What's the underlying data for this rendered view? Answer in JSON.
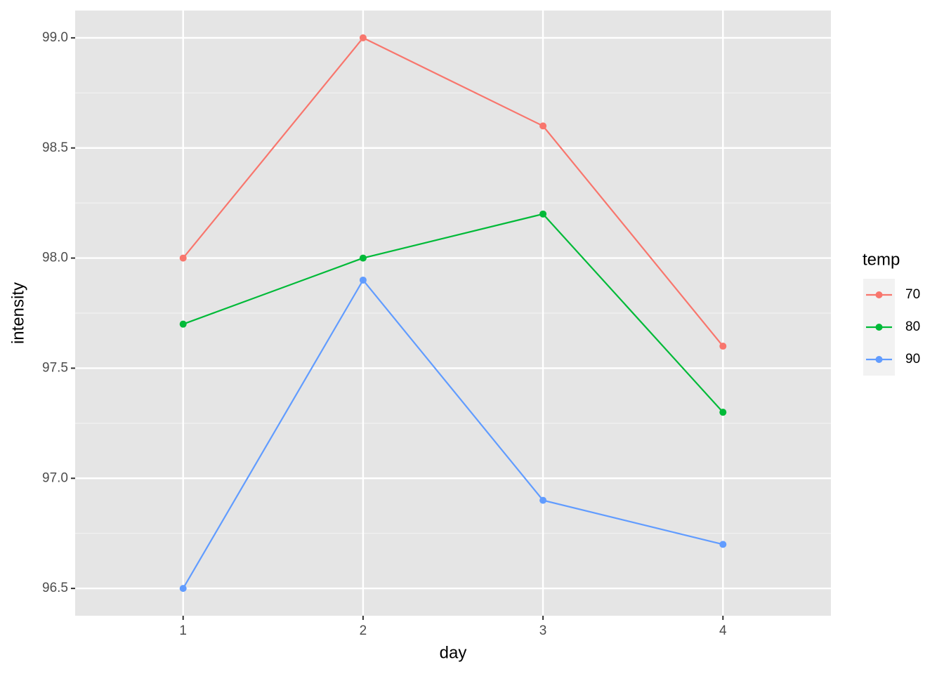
{
  "chart_data": {
    "type": "line",
    "x_label": "day",
    "y_label": "intensity",
    "legend_title": "temp",
    "legend_position": "right",
    "x": [
      1,
      2,
      3,
      4
    ],
    "series": [
      {
        "name": "70",
        "color": "#F8766D",
        "values": [
          98.0,
          99.0,
          98.6,
          97.6
        ]
      },
      {
        "name": "80",
        "color": "#00BA38",
        "values": [
          97.7,
          98.0,
          98.2,
          97.3
        ]
      },
      {
        "name": "90",
        "color": "#619CFF",
        "values": [
          96.5,
          97.9,
          96.9,
          96.7
        ]
      }
    ],
    "xlim": [
      0.4,
      4.6
    ],
    "xticks": [
      1,
      2,
      3,
      4
    ],
    "ylim": [
      96.376,
      99.124
    ],
    "yticks": [
      {
        "value": 96.5,
        "label": "96.5"
      },
      {
        "value": 97,
        "label": "97.0"
      },
      {
        "value": 97.5,
        "label": "97.5"
      },
      {
        "value": 98,
        "label": "98.0"
      },
      {
        "value": 98.5,
        "label": "98.5"
      },
      {
        "value": 99,
        "label": "99.0"
      }
    ],
    "yminor": [
      96.75,
      97.25,
      97.75,
      98.25,
      98.75
    ],
    "grid": true,
    "panel_color": "#e5e5e5"
  }
}
